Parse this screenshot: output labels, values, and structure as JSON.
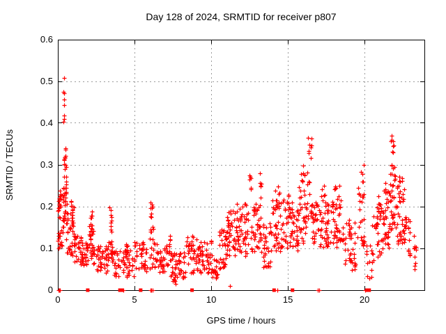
{
  "title": "Day 128 of 2024, SRMTID for receiver p807",
  "chart_data": {
    "type": "scatter",
    "title": "Day 128 of 2024, SRMTID for receiver p807",
    "xlabel": "GPS time / hours",
    "ylabel": "SRMTID / TECUs",
    "xlim": [
      0,
      23.9
    ],
    "ylim": [
      0,
      0.6
    ],
    "xticks": [
      0,
      5,
      10,
      15,
      20
    ],
    "yticks": [
      0,
      0.1,
      0.2,
      0.3,
      0.4,
      0.5,
      0.6
    ],
    "grid": true,
    "legend_position": "none",
    "marker": "plus-cross",
    "point_color": "#ff0000",
    "grid_color": "#9a9a9a",
    "axis_color": "#000000",
    "seed": 12345,
    "notable_points": [
      [
        0.42,
        0.508
      ],
      [
        0.4,
        0.474
      ],
      [
        0.42,
        0.471
      ],
      [
        0.41,
        0.455
      ],
      [
        0.42,
        0.443
      ],
      [
        0.41,
        0.417
      ],
      [
        0.42,
        0.41
      ],
      [
        0.4,
        0.402
      ],
      [
        7.7,
        0.015
      ],
      [
        11.25,
        0.01
      ],
      [
        20.35,
        0.028
      ]
    ],
    "cluster_format": "[hour_start, hour_end, point_count, value_min_TECU, value_max_TECU]",
    "point_clusters": [
      [
        0.0,
        0.12,
        14,
        0.09,
        0.22
      ],
      [
        0.08,
        0.3,
        20,
        0.1,
        0.24
      ],
      [
        0.3,
        0.42,
        12,
        0.15,
        0.25
      ],
      [
        0.4,
        0.52,
        9,
        0.3,
        0.345
      ],
      [
        0.42,
        0.55,
        5,
        0.27,
        0.3
      ],
      [
        0.45,
        0.62,
        8,
        0.22,
        0.26
      ],
      [
        0.35,
        0.65,
        16,
        0.12,
        0.22
      ],
      [
        0.6,
        1.1,
        40,
        0.08,
        0.2
      ],
      [
        0.88,
        1.0,
        8,
        0.16,
        0.215
      ],
      [
        1.1,
        1.6,
        30,
        0.06,
        0.13
      ],
      [
        1.6,
        2.0,
        25,
        0.055,
        0.12
      ],
      [
        2.05,
        2.35,
        22,
        0.07,
        0.155
      ],
      [
        2.15,
        2.3,
        10,
        0.13,
        0.19
      ],
      [
        2.35,
        3.3,
        45,
        0.04,
        0.105
      ],
      [
        3.35,
        3.55,
        12,
        0.1,
        0.21
      ],
      [
        3.3,
        3.6,
        15,
        0.05,
        0.13
      ],
      [
        3.6,
        5.0,
        60,
        0.03,
        0.095
      ],
      [
        4.4,
        4.6,
        6,
        0.08,
        0.12
      ],
      [
        5.0,
        5.9,
        40,
        0.04,
        0.115
      ],
      [
        6.0,
        6.3,
        14,
        0.05,
        0.15
      ],
      [
        6.05,
        6.2,
        9,
        0.15,
        0.21
      ],
      [
        6.3,
        6.5,
        10,
        0.05,
        0.12
      ],
      [
        6.5,
        7.0,
        25,
        0.04,
        0.11
      ],
      [
        7.0,
        7.4,
        18,
        0.05,
        0.13
      ],
      [
        7.4,
        8.35,
        50,
        0.02,
        0.09
      ],
      [
        8.35,
        9.3,
        45,
        0.04,
        0.13
      ],
      [
        9.3,
        10.1,
        40,
        0.04,
        0.12
      ],
      [
        10.1,
        10.45,
        18,
        0.02,
        0.08
      ],
      [
        10.5,
        11.0,
        28,
        0.05,
        0.15
      ],
      [
        11.0,
        11.7,
        45,
        0.08,
        0.19
      ],
      [
        11.7,
        12.45,
        50,
        0.08,
        0.21
      ],
      [
        12.5,
        12.62,
        6,
        0.22,
        0.28
      ],
      [
        12.6,
        13.3,
        45,
        0.09,
        0.21
      ],
      [
        13.15,
        13.3,
        6,
        0.22,
        0.28
      ],
      [
        13.3,
        13.9,
        30,
        0.05,
        0.16
      ],
      [
        13.9,
        14.6,
        40,
        0.09,
        0.22
      ],
      [
        14.2,
        14.5,
        8,
        0.2,
        0.25
      ],
      [
        14.6,
        15.3,
        40,
        0.1,
        0.23
      ],
      [
        15.3,
        15.7,
        25,
        0.09,
        0.2
      ],
      [
        15.7,
        16.25,
        30,
        0.11,
        0.25
      ],
      [
        15.8,
        16.2,
        8,
        0.25,
        0.3
      ],
      [
        16.25,
        16.6,
        14,
        0.15,
        0.3
      ],
      [
        16.3,
        16.55,
        8,
        0.31,
        0.37
      ],
      [
        16.6,
        17.6,
        55,
        0.1,
        0.21
      ],
      [
        17.2,
        17.5,
        6,
        0.21,
        0.25
      ],
      [
        17.6,
        18.5,
        50,
        0.1,
        0.22
      ],
      [
        18.0,
        18.4,
        6,
        0.22,
        0.26
      ],
      [
        18.5,
        19.45,
        40,
        0.06,
        0.17
      ],
      [
        19.0,
        19.4,
        8,
        0.04,
        0.08
      ],
      [
        19.55,
        20.1,
        25,
        0.1,
        0.25
      ],
      [
        19.8,
        20.0,
        6,
        0.25,
        0.3
      ],
      [
        20.15,
        20.5,
        12,
        0.03,
        0.11
      ],
      [
        20.5,
        21.3,
        40,
        0.07,
        0.2
      ],
      [
        20.9,
        21.1,
        6,
        0.19,
        0.23
      ],
      [
        21.3,
        21.7,
        35,
        0.1,
        0.26
      ],
      [
        21.7,
        22.0,
        30,
        0.14,
        0.3
      ],
      [
        21.75,
        21.95,
        8,
        0.31,
        0.38
      ],
      [
        22.0,
        22.6,
        45,
        0.11,
        0.28
      ],
      [
        22.6,
        23.0,
        20,
        0.08,
        0.18
      ],
      [
        23.25,
        23.45,
        10,
        0.04,
        0.13
      ]
    ],
    "zero_square_markers_hours": [
      1.95,
      4.05,
      4.2,
      5.4,
      8.75,
      14.1,
      15.3,
      20.2,
      20.3
    ],
    "zero_plus_markers_hours": [
      0.05,
      0.1,
      0.15,
      4.3,
      6.05,
      6.1,
      6.2,
      14.35,
      16.95,
      17.05,
      20.05
    ]
  }
}
